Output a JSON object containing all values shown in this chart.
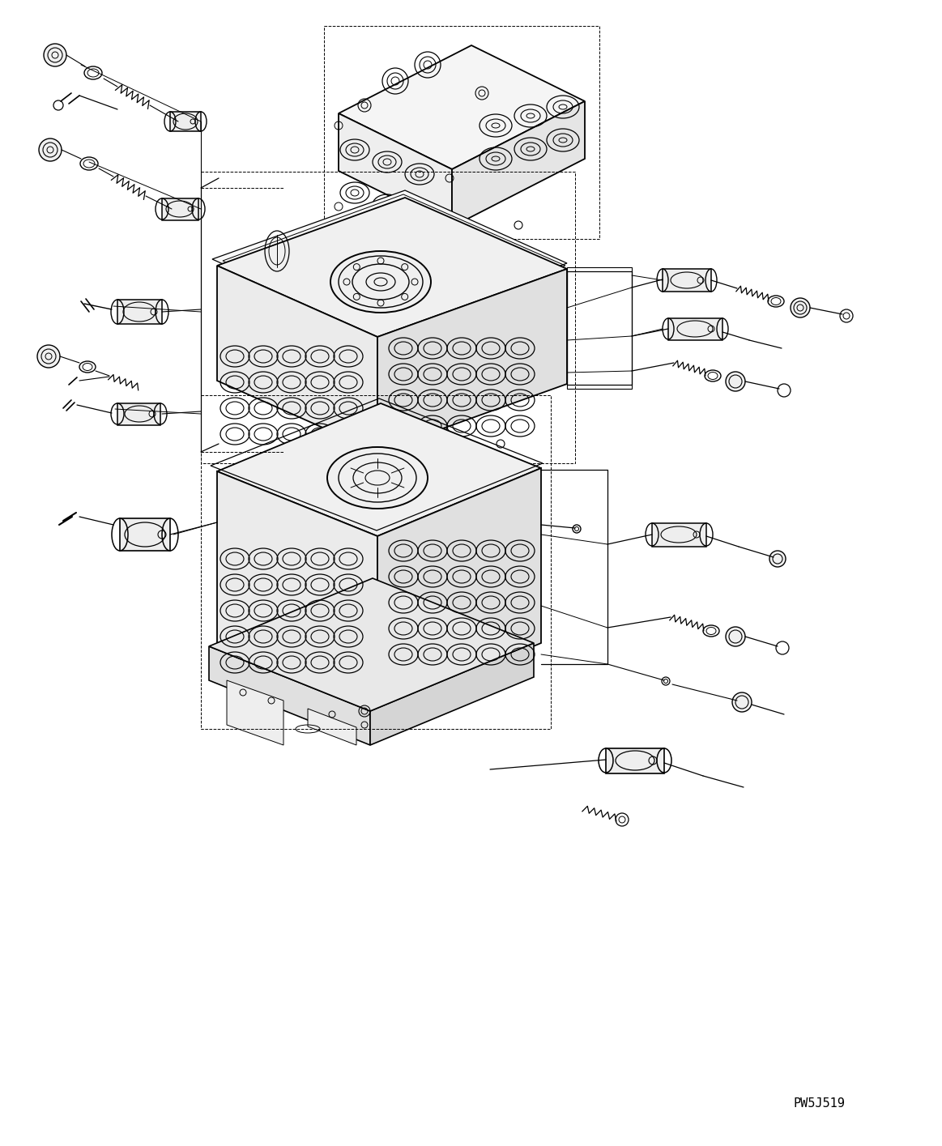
{
  "background_color": "#ffffff",
  "line_color": "#000000",
  "figure_width": 11.63,
  "figure_height": 14.15,
  "dpi": 100,
  "watermark_text": "PW5J519",
  "watermark_fontsize": 11
}
